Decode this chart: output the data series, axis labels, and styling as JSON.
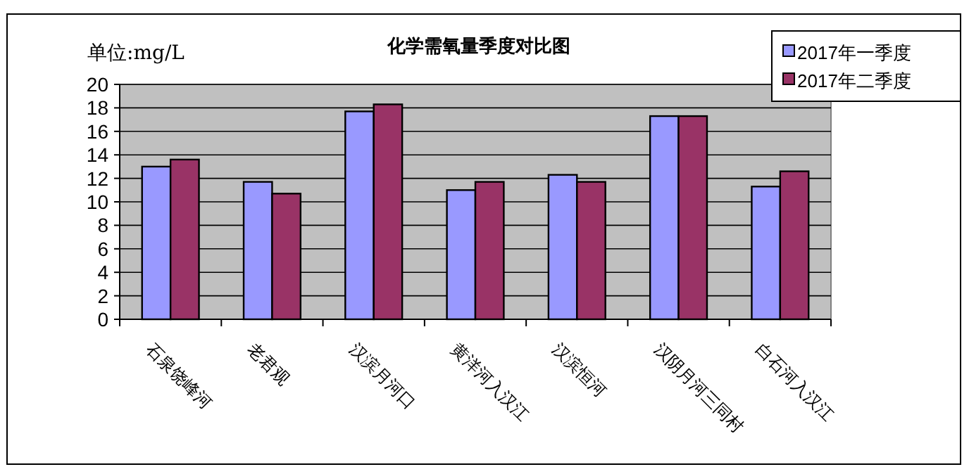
{
  "chart_data": {
    "type": "bar",
    "title": "化学需氧量季度对比图",
    "ylabel": "单位:mg/L",
    "categories": [
      "石泉饶峰河",
      "老君观",
      "汉滨月河口",
      "黄洋河入汉江",
      "汉滨恒河",
      "汉阴月河三同村",
      "白石河入汉江"
    ],
    "series": [
      {
        "name": "2017年一季度",
        "color": "#9999ff",
        "values": [
          13.0,
          11.7,
          17.7,
          11.0,
          12.3,
          17.3,
          11.3
        ]
      },
      {
        "name": "2017年二季度",
        "color": "#993366",
        "values": [
          13.6,
          10.7,
          18.3,
          11.7,
          11.7,
          17.3,
          12.6
        ]
      }
    ],
    "ylim": [
      0,
      20
    ],
    "yticks": [
      0,
      2,
      4,
      6,
      8,
      10,
      12,
      14,
      16,
      18,
      20
    ],
    "grid": "y",
    "legend": "top right"
  }
}
